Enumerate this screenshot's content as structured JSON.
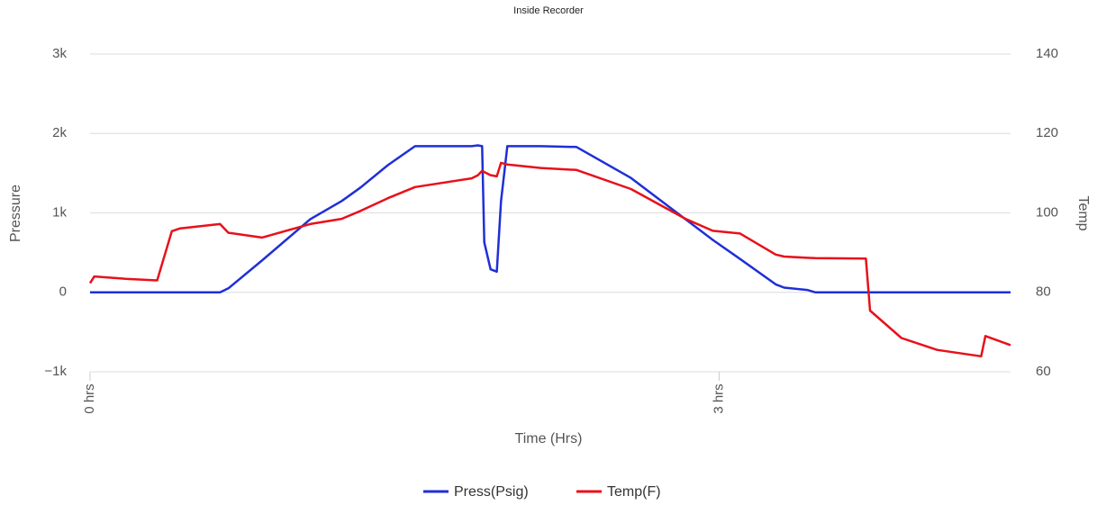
{
  "chart_data": {
    "type": "line",
    "title": "Inside Recorder",
    "x_label": "Time (Hrs)",
    "y_label": "Pressure",
    "y2_label": "Temp",
    "x": [
      0,
      0.02,
      0.17,
      0.32,
      0.39,
      0.43,
      0.62,
      0.66,
      0.82,
      1.05,
      1.2,
      1.29,
      1.42,
      1.55,
      1.82,
      1.85,
      1.87,
      1.88,
      1.91,
      1.94,
      1.96,
      1.99,
      2.15,
      2.32,
      2.58,
      2.84,
      2.97,
      3.1,
      3.27,
      3.31,
      3.42,
      3.46,
      3.7,
      3.72,
      3.87,
      4.04,
      4.25,
      4.27,
      4.39
    ],
    "series": [
      {
        "name": "Press(Psig)",
        "color": "#1f2fd6",
        "values": [
          0,
          0,
          0,
          0,
          0,
          0,
          0,
          50,
          400,
          920,
          1150,
          1320,
          1600,
          1840,
          1840,
          1850,
          1840,
          630,
          290,
          260,
          1150,
          1840,
          1840,
          1830,
          1440,
          920,
          660,
          420,
          100,
          60,
          30,
          0,
          0,
          0,
          0,
          0,
          0,
          0,
          0
        ]
      },
      {
        "name": "Temp(F)",
        "color": "#e8101a",
        "axis": "y2",
        "values": [
          82.3,
          84,
          83.4,
          83,
          95.4,
          96.1,
          97.2,
          95,
          93.8,
          97.2,
          98.5,
          100.5,
          103.7,
          106.5,
          108.7,
          109.5,
          110.6,
          110.3,
          109.5,
          109.2,
          112.6,
          112.2,
          111.3,
          110.8,
          106,
          98.5,
          95.5,
          94.8,
          89.5,
          89,
          88.7,
          88.6,
          88.5,
          75.4,
          68.5,
          65.5,
          63.9,
          69,
          66.7
        ]
      }
    ],
    "xlim": [
      0,
      4.39
    ],
    "xticks": [
      {
        "value": 0,
        "label": "0 hrs"
      },
      {
        "value": 3,
        "label": "3 hrs"
      }
    ],
    "ylim": [
      -1000,
      3000
    ],
    "yticks": [
      {
        "value": -1000,
        "label": "−1k"
      },
      0,
      {
        "value": 1000,
        "label": "1k"
      },
      {
        "value": 2000,
        "label": "2k"
      },
      {
        "value": 3000,
        "label": "3k"
      }
    ],
    "y2lim": [
      60,
      140
    ],
    "y2ticks": [
      60,
      80,
      100,
      120,
      140
    ],
    "grid": true,
    "legend": "bottom"
  }
}
